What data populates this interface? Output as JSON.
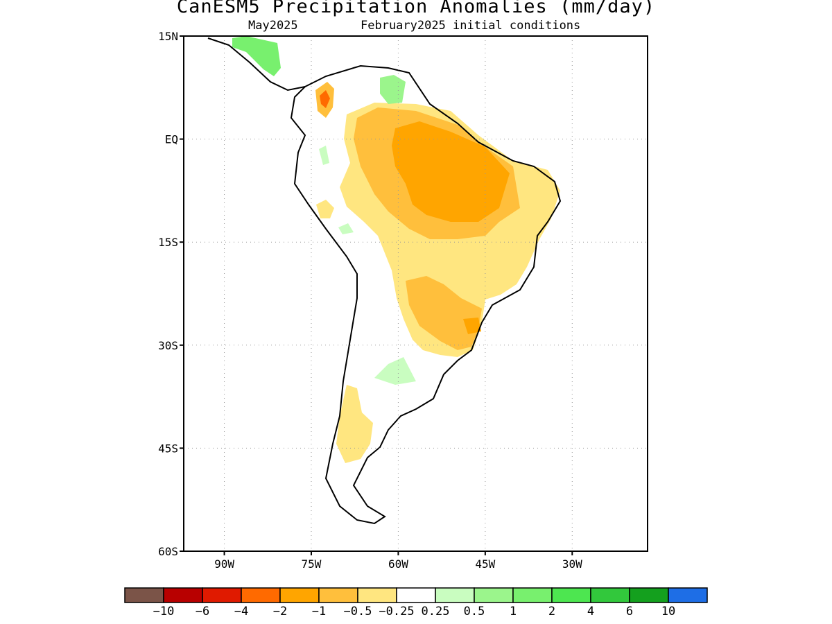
{
  "title": "CanESM5 Precipitation Anomalies (mm/day)",
  "subtitle_left": "May2025",
  "subtitle_right": "February2025 initial conditions",
  "map": {
    "lon_range": [
      -97,
      -17
    ],
    "lat_range": [
      -60,
      15
    ],
    "lat_ticks": [
      {
        "value": 15,
        "label": "15N"
      },
      {
        "value": 0,
        "label": "EQ"
      },
      {
        "value": -15,
        "label": "15S"
      },
      {
        "value": -30,
        "label": "30S"
      },
      {
        "value": -45,
        "label": "45S"
      },
      {
        "value": -60,
        "label": "60S"
      }
    ],
    "lon_ticks": [
      {
        "value": -90,
        "label": "90W"
      },
      {
        "value": -75,
        "label": "75W"
      },
      {
        "value": -60,
        "label": "60W"
      },
      {
        "value": -45,
        "label": "45W"
      },
      {
        "value": -30,
        "label": "30W"
      }
    ],
    "gridlines": "dotted",
    "land_outline_color": "#000000"
  },
  "colorbar": {
    "colors": [
      "#7b5448",
      "#b80000",
      "#e01a00",
      "#ff6a00",
      "#ffa500",
      "#ffbf3c",
      "#ffe680",
      "#ffffff",
      "#c9fdc0",
      "#9bf58c",
      "#78f06e",
      "#4de650",
      "#32c83c",
      "#14a01e",
      "#1e6ee6"
    ],
    "labels": [
      "-10",
      "-6",
      "-4",
      "-2",
      "-1",
      "-0.5",
      "-0.25",
      "0.25",
      "0.5",
      "1",
      "2",
      "4",
      "6",
      "10"
    ]
  }
}
